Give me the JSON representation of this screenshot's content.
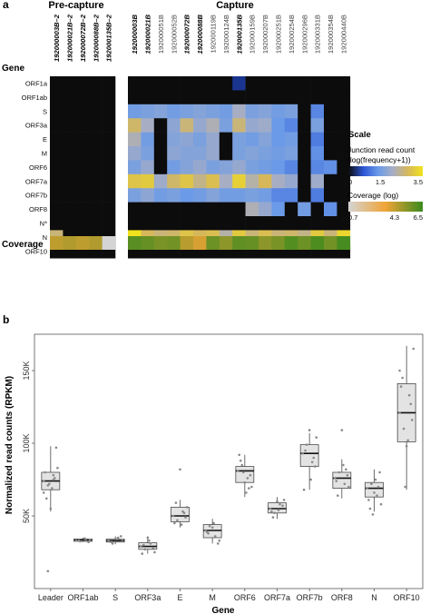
{
  "chart_data": [
    {
      "type": "heatmap",
      "panel_label": "a",
      "group_titles": [
        "Pre-capture",
        "Capture"
      ],
      "row_axis_label": "Gene",
      "rows": [
        "ORF1a",
        "ORF1ab",
        "S",
        "ORF3a",
        "E",
        "M",
        "ORF6",
        "ORF7a",
        "ORF7b",
        "ORF8",
        "N*",
        "N",
        "ORF10"
      ],
      "pre_capture_columns": [
        {
          "id": "192000003B–2",
          "bold": true
        },
        {
          "id": "192000021B–2",
          "bold": true
        },
        {
          "id": "192000072B–2",
          "bold": true
        },
        {
          "id": "192000088B–2",
          "bold": true
        },
        {
          "id": "192000135B–2",
          "bold": true
        }
      ],
      "capture_columns": [
        {
          "id": "192000003B",
          "bold": true
        },
        {
          "id": "192000021B",
          "bold": true
        },
        {
          "id": "192000051B",
          "bold": false
        },
        {
          "id": "192000052B",
          "bold": false
        },
        {
          "id": "192000072B",
          "bold": true
        },
        {
          "id": "192000088B",
          "bold": true
        },
        {
          "id": "192000119B",
          "bold": false
        },
        {
          "id": "192000124B",
          "bold": false
        },
        {
          "id": "192000135B",
          "bold": true
        },
        {
          "id": "192000159B",
          "bold": false
        },
        {
          "id": "192000207B",
          "bold": false
        },
        {
          "id": "192000251B",
          "bold": false
        },
        {
          "id": "192000254B",
          "bold": false
        },
        {
          "id": "192000296B",
          "bold": false
        },
        {
          "id": "192000331B",
          "bold": false
        },
        {
          "id": "192000354B",
          "bold": false
        },
        {
          "id": "192000440B",
          "bold": false
        }
      ],
      "pre_capture_values": [
        [
          0,
          0,
          0,
          0,
          0
        ],
        [
          0,
          0,
          0,
          0,
          0
        ],
        [
          0,
          0,
          0,
          0,
          0
        ],
        [
          0,
          0,
          0,
          0,
          0
        ],
        [
          0,
          0,
          0,
          0,
          0
        ],
        [
          0,
          0,
          0,
          0,
          0
        ],
        [
          0,
          0,
          0,
          0,
          0
        ],
        [
          0,
          0,
          0,
          0,
          0
        ],
        [
          0,
          0,
          0,
          0,
          0
        ],
        [
          0,
          0,
          0,
          0,
          0
        ],
        [
          0,
          0,
          0,
          0,
          0
        ],
        [
          2.6,
          0,
          0,
          0,
          0
        ],
        [
          0,
          0,
          0,
          0,
          0
        ]
      ],
      "capture_values": [
        [
          0,
          0,
          0,
          0,
          0,
          0,
          0,
          0,
          0.3,
          0,
          0,
          0,
          0,
          0,
          0,
          0,
          0
        ],
        [
          0,
          0,
          0,
          0,
          0,
          0,
          0,
          0,
          0,
          0,
          0,
          0,
          0,
          0,
          0,
          0,
          0
        ],
        [
          1.5,
          1.6,
          1.7,
          1.5,
          1.6,
          1.7,
          1.6,
          1.5,
          2.1,
          1.6,
          1.7,
          1.5,
          1.6,
          0,
          1.2,
          0,
          0
        ],
        [
          2.7,
          2.1,
          0,
          1.8,
          2.6,
          1.9,
          2.2,
          1.6,
          2.6,
          1.9,
          2.0,
          1.4,
          1.2,
          0,
          1.6,
          0,
          0
        ],
        [
          2.2,
          1.5,
          0,
          1.7,
          1.8,
          1.6,
          1.9,
          0,
          1.6,
          1.5,
          1.7,
          1.4,
          1.5,
          0,
          1.1,
          0,
          0
        ],
        [
          1.9,
          1.6,
          0,
          1.8,
          1.7,
          1.7,
          1.9,
          0,
          1.6,
          1.7,
          1.6,
          1.5,
          1.6,
          0,
          1.3,
          0,
          0
        ],
        [
          1.6,
          1.9,
          0,
          1.5,
          1.7,
          1.9,
          1.6,
          1.7,
          1.9,
          1.6,
          1.5,
          1.4,
          1.2,
          0,
          1.2,
          1.3,
          0
        ],
        [
          3.0,
          3.1,
          2.0,
          2.7,
          3.0,
          2.5,
          2.9,
          2.1,
          3.2,
          2.3,
          2.8,
          2.1,
          1.9,
          0,
          2.0,
          0,
          0
        ],
        [
          1.6,
          1.8,
          1.5,
          1.6,
          1.4,
          1.5,
          1.7,
          1.5,
          1.5,
          1.6,
          1.5,
          1.2,
          1.2,
          0,
          1.1,
          0,
          0
        ],
        [
          0,
          0,
          0,
          0,
          0,
          0,
          0,
          0,
          0,
          2.2,
          1.9,
          1.4,
          0,
          1.5,
          0,
          1.3,
          0
        ],
        [
          0,
          0,
          0,
          0,
          0,
          0,
          0,
          0,
          0,
          0,
          0,
          0,
          0,
          0,
          0,
          0,
          0
        ],
        [
          3.5,
          2.8,
          2.6,
          2.7,
          3.0,
          2.8,
          2.9,
          2.3,
          3.1,
          2.6,
          2.9,
          2.6,
          2.7,
          2.5,
          3.1,
          2.6,
          3.3
        ],
        [
          0,
          0,
          0,
          0,
          0,
          0,
          0,
          0,
          0,
          0,
          0,
          0,
          0,
          0,
          0,
          0,
          0
        ]
      ],
      "coverage_row_label": "Coverage",
      "pre_capture_coverage": [
        4.4,
        4.6,
        4.4,
        4.6,
        0.7
      ],
      "capture_coverage": [
        6.0,
        5.8,
        5.5,
        5.6,
        4.5,
        4.0,
        5.7,
        5.2,
        5.9,
        5.8,
        5.2,
        5.5,
        6.1,
        5.7,
        6.2,
        5.6,
        6.3
      ],
      "legend": {
        "title": "Scale",
        "junction_title": "Junction read count",
        "junction_subtitle": "(log(frequency+1))",
        "junction_ticks": [
          "0",
          "1.5",
          "3.5"
        ],
        "junction_range": [
          0,
          3.5
        ],
        "coverage_title": "Coverage (log)",
        "coverage_ticks": [
          "0.7",
          "4.3",
          "6.5"
        ],
        "coverage_range": [
          0.7,
          6.5
        ]
      },
      "colors": {
        "zero": "#0c0c0c",
        "junction_scale": [
          "#0b1d5c",
          "#2c55d4",
          "#6a9ae8",
          "#a7aec4",
          "#d6b85a",
          "#f2e21e"
        ],
        "coverage_scale": [
          "#d4d4d4",
          "#f0a436",
          "#3a8a1e"
        ]
      }
    },
    {
      "type": "box",
      "panel_label": "b",
      "xlabel": "Gene",
      "ylabel": "Normalized read counts (RPKM)",
      "categories": [
        "Leader",
        "ORF1ab",
        "S",
        "ORF3a",
        "E",
        "M",
        "ORF6",
        "ORF7a",
        "ORF7b",
        "ORF8",
        "N",
        "ORF10"
      ],
      "yticks": [
        {
          "value": 50000,
          "label": "50K"
        },
        {
          "value": 100000,
          "label": "100K"
        },
        {
          "value": 150000,
          "label": "150K"
        }
      ],
      "ylim": [
        0,
        175000
      ],
      "boxes": [
        {
          "q1": 68000,
          "median": 74000,
          "q3": 80000,
          "whisker_low": 53000,
          "whisker_high": 98000
        },
        {
          "q1": 32500,
          "median": 33500,
          "q3": 34000,
          "whisker_low": 32000,
          "whisker_high": 35000
        },
        {
          "q1": 32000,
          "median": 33000,
          "q3": 34000,
          "whisker_low": 30500,
          "whisker_high": 36000
        },
        {
          "q1": 27000,
          "median": 29000,
          "q3": 31500,
          "whisker_low": 24000,
          "whisker_high": 36000
        },
        {
          "q1": 46000,
          "median": 50000,
          "q3": 56000,
          "whisker_low": 42000,
          "whisker_high": 61000
        },
        {
          "q1": 35000,
          "median": 40000,
          "q3": 44000,
          "whisker_low": 31000,
          "whisker_high": 48000
        },
        {
          "q1": 73000,
          "median": 81000,
          "q3": 84000,
          "whisker_low": 63000,
          "whisker_high": 92000
        },
        {
          "q1": 52000,
          "median": 55000,
          "q3": 59000,
          "whisker_low": 48000,
          "whisker_high": 63000
        },
        {
          "q1": 84000,
          "median": 93000,
          "q3": 99000,
          "whisker_low": 68000,
          "whisker_high": 107000
        },
        {
          "q1": 69000,
          "median": 76000,
          "q3": 80000,
          "whisker_low": 62000,
          "whisker_high": 89000
        },
        {
          "q1": 63000,
          "median": 69000,
          "q3": 73000,
          "whisker_low": 53000,
          "whisker_high": 82000
        },
        {
          "q1": 101000,
          "median": 121000,
          "q3": 141000,
          "whisker_low": 68000,
          "whisker_high": 167000
        }
      ],
      "points": [
        [
          74000,
          78000,
          71000,
          83000,
          69000,
          62000,
          97000,
          55000,
          80000,
          76000,
          72000,
          66000,
          75000,
          12000
        ],
        [
          33000,
          34000,
          32500,
          33500,
          34500,
          33000,
          32000
        ],
        [
          33000,
          35000,
          31000,
          33500,
          34000,
          32000,
          36000
        ],
        [
          29000,
          31000,
          27000,
          25000,
          33000,
          30000,
          28000,
          35000,
          24000
        ],
        [
          50000,
          53000,
          47000,
          56000,
          44000,
          59000,
          49000,
          82000,
          45000,
          52000
        ],
        [
          40000,
          36000,
          43000,
          33000,
          45000,
          38000,
          31000,
          42000,
          39000
        ],
        [
          81000,
          76000,
          85000,
          70000,
          66000,
          88000,
          78000,
          73000,
          92000,
          69000,
          80000
        ],
        [
          55000,
          58000,
          52000,
          61000,
          54000,
          49000,
          57000,
          60000,
          53000
        ],
        [
          93000,
          87000,
          99000,
          104000,
          75000,
          95000,
          84000,
          109000,
          68000,
          90000
        ],
        [
          76000,
          72000,
          80000,
          70000,
          85000,
          64000,
          78000,
          109000,
          74000,
          82000
        ],
        [
          69000,
          64000,
          72000,
          58000,
          75000,
          55000,
          80000,
          66000,
          61000,
          70000,
          51000
        ],
        [
          121000,
          133000,
          110000,
          165000,
          102000,
          145000,
          116000,
          98000,
          139000,
          127000,
          70000,
          150000
        ]
      ],
      "colors": {
        "box_fill": "#e3e3e3",
        "box_stroke": "#4a4a4a",
        "point": "#8a8a8a"
      }
    }
  ]
}
